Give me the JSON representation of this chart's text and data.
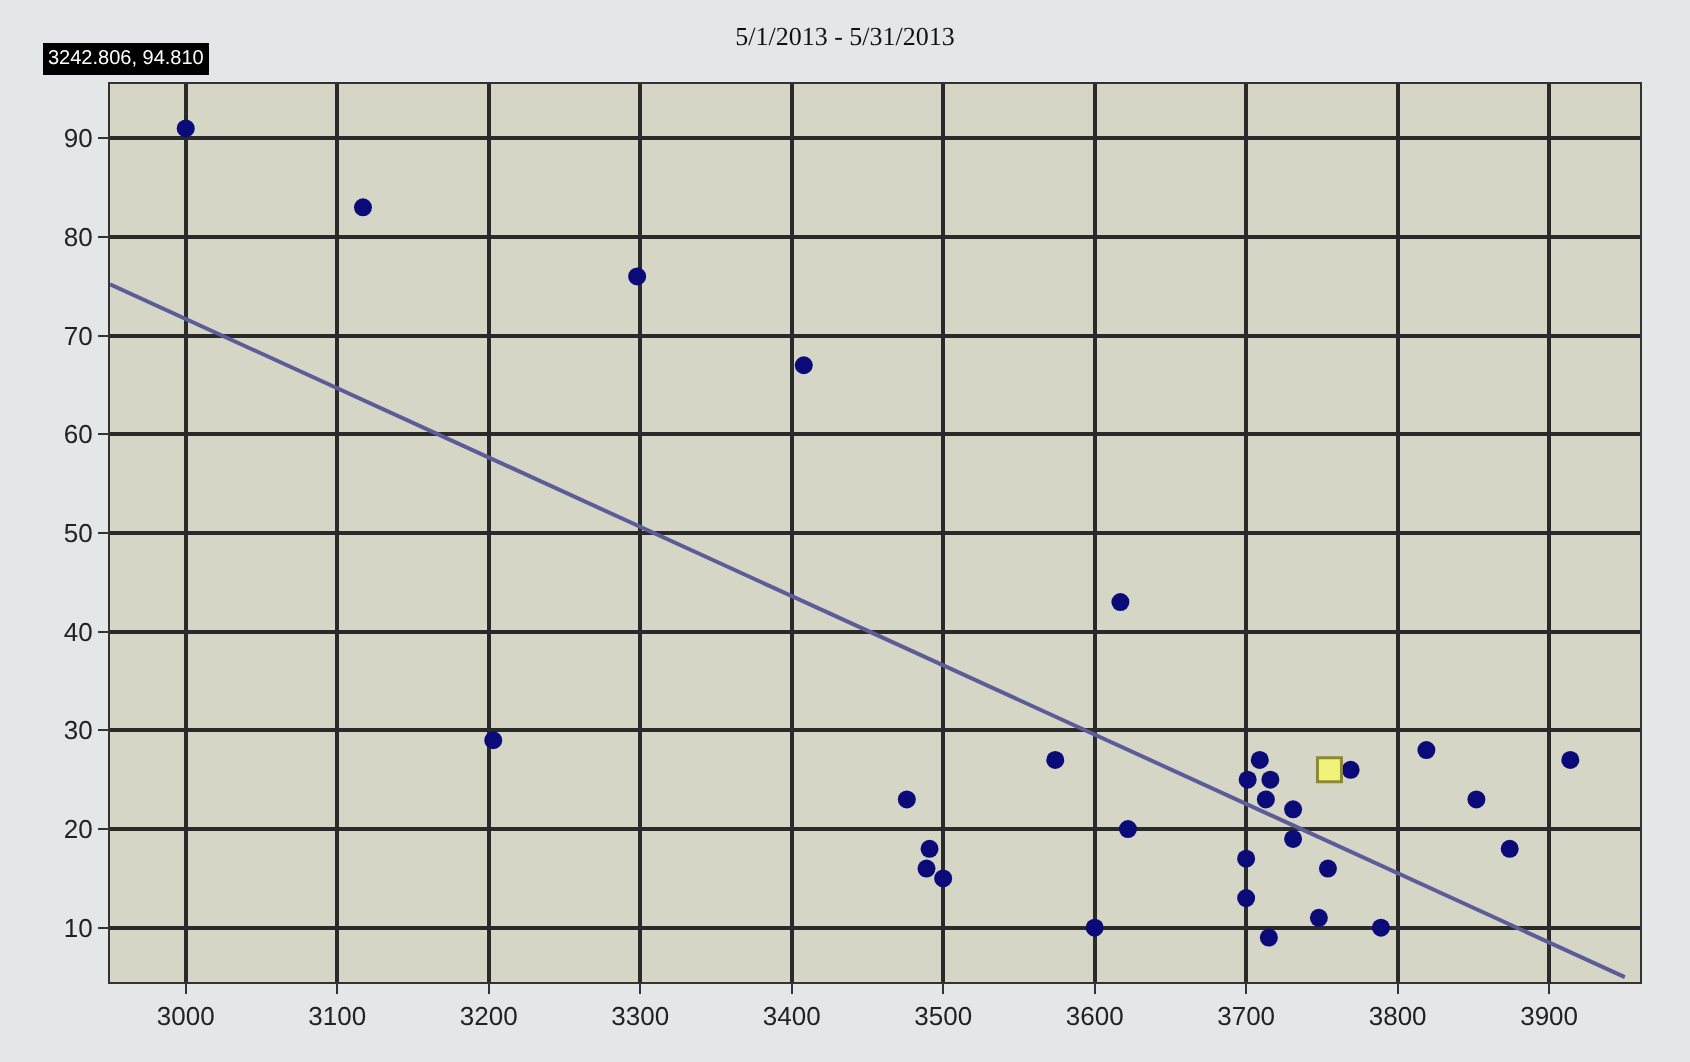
{
  "chart_data": {
    "type": "scatter",
    "title": "5/1/2013 - 5/31/2013",
    "annotations": [
      "3242.806, 94.810"
    ],
    "xlim": [
      2950,
      3960
    ],
    "xticks": [
      3000,
      3100,
      3200,
      3300,
      3400,
      3500,
      3600,
      3700,
      3800,
      3900
    ],
    "ylim": [
      4.5,
      95.5
    ],
    "yticks": [
      10,
      20,
      30,
      40,
      50,
      60,
      70,
      80,
      90
    ],
    "grid": true,
    "marker": "circle",
    "series": [
      {
        "color": "#0a0a78",
        "x": [
          3000,
          3117,
          3298,
          3408,
          3203,
          3617,
          3574,
          3476,
          3491,
          3489,
          3500,
          3622,
          3600,
          3709,
          3701,
          3716,
          3713,
          3731,
          3731,
          3700,
          3700,
          3715,
          3748,
          3754,
          3769,
          3789,
          3819,
          3852,
          3874,
          3914
        ],
        "values": [
          91,
          83,
          76,
          67,
          29,
          43,
          27,
          23,
          18,
          16,
          15,
          20,
          10,
          27,
          25,
          25,
          23,
          22,
          19,
          17,
          13,
          9,
          11,
          16,
          26,
          10,
          28,
          23,
          18,
          27
        ]
      },
      {
        "color": "#f2f27a",
        "marker": "square",
        "x": [
          3755
        ],
        "values": [
          26
        ]
      },
      {
        "type": "line",
        "color": "#5c5c98",
        "marker": "none",
        "x": [
          2950,
          3950
        ],
        "values": [
          75.2,
          5
        ]
      }
    ]
  }
}
